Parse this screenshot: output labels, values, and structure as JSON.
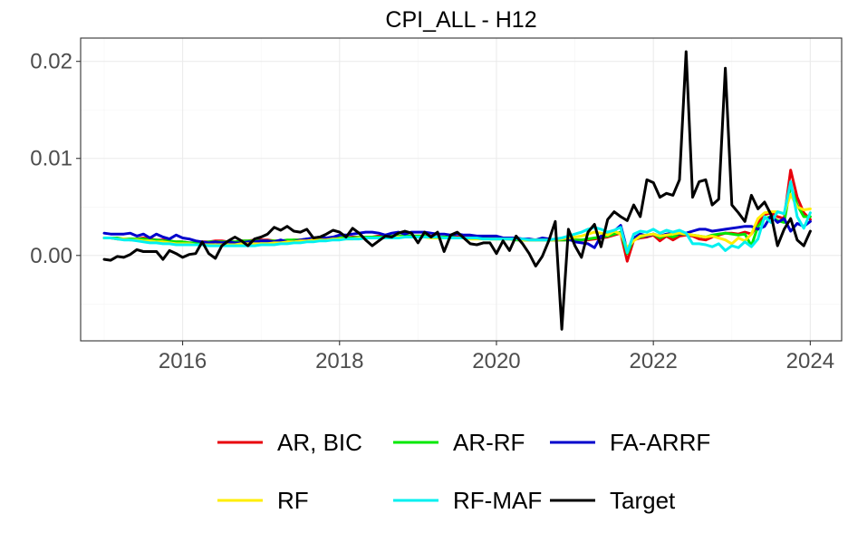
{
  "chart_data": {
    "type": "line",
    "title": "CPI_ALL - H12",
    "xlabel": "",
    "ylabel": "",
    "xlim": [
      2014.7,
      2024.4
    ],
    "ylim": [
      -0.0088,
      0.0224
    ],
    "x_ticks": [
      2016,
      2018,
      2020,
      2022,
      2024
    ],
    "x_tick_labels": [
      "2016",
      "2018",
      "2020",
      "2022",
      "2024"
    ],
    "y_ticks": [
      0.0,
      0.01,
      0.02
    ],
    "y_tick_labels": [
      "0.00",
      "0.01",
      "0.02"
    ],
    "grid": true,
    "legend_position": "bottom",
    "x": [
      2015.0,
      2015.083,
      2015.167,
      2015.25,
      2015.333,
      2015.417,
      2015.5,
      2015.583,
      2015.667,
      2015.75,
      2015.833,
      2015.917,
      2016.0,
      2016.083,
      2016.167,
      2016.25,
      2016.333,
      2016.417,
      2016.5,
      2016.583,
      2016.667,
      2016.75,
      2016.833,
      2016.917,
      2017.0,
      2017.083,
      2017.167,
      2017.25,
      2017.333,
      2017.417,
      2017.5,
      2017.583,
      2017.667,
      2017.75,
      2017.833,
      2017.917,
      2018.0,
      2018.083,
      2018.167,
      2018.25,
      2018.333,
      2018.417,
      2018.5,
      2018.583,
      2018.667,
      2018.75,
      2018.833,
      2018.917,
      2019.0,
      2019.083,
      2019.167,
      2019.25,
      2019.333,
      2019.417,
      2019.5,
      2019.583,
      2019.667,
      2019.75,
      2019.833,
      2019.917,
      2020.0,
      2020.083,
      2020.167,
      2020.25,
      2020.333,
      2020.417,
      2020.5,
      2020.583,
      2020.667,
      2020.75,
      2020.833,
      2020.917,
      2021.0,
      2021.083,
      2021.167,
      2021.25,
      2021.333,
      2021.417,
      2021.5,
      2021.583,
      2021.667,
      2021.75,
      2021.833,
      2021.917,
      2022.0,
      2022.083,
      2022.167,
      2022.25,
      2022.333,
      2022.417,
      2022.5,
      2022.583,
      2022.667,
      2022.75,
      2022.833,
      2022.917,
      2023.0,
      2023.083,
      2023.167,
      2023.25,
      2023.333,
      2023.417,
      2023.5,
      2023.583,
      2023.667,
      2023.75,
      2023.833,
      2023.917,
      2024.0
    ],
    "series": [
      {
        "name": "AR, BIC",
        "color": "#e8000b",
        "values": [
          0.0018,
          0.0018,
          0.0017,
          0.0017,
          0.0016,
          0.0017,
          0.0018,
          0.0017,
          0.0016,
          0.0016,
          0.0015,
          0.0014,
          0.0014,
          0.0013,
          0.0013,
          0.0014,
          0.0014,
          0.0015,
          0.0015,
          0.0014,
          0.0014,
          0.0015,
          0.0015,
          0.0016,
          0.0016,
          0.0016,
          0.0015,
          0.0015,
          0.0015,
          0.0016,
          0.0016,
          0.0016,
          0.0017,
          0.0017,
          0.0017,
          0.0018,
          0.0018,
          0.0018,
          0.0019,
          0.0019,
          0.0019,
          0.0019,
          0.002,
          0.002,
          0.002,
          0.002,
          0.002,
          0.002,
          0.002,
          0.002,
          0.002,
          0.0019,
          0.0019,
          0.0019,
          0.0019,
          0.0019,
          0.0019,
          0.0018,
          0.0018,
          0.0018,
          0.0018,
          0.0017,
          0.0017,
          0.0017,
          0.0016,
          0.0016,
          0.0016,
          0.0016,
          0.0016,
          0.0016,
          0.0016,
          0.0016,
          0.0016,
          0.0016,
          0.0016,
          0.0017,
          0.0018,
          0.0019,
          0.0021,
          0.0023,
          -0.0006,
          0.0016,
          0.0018,
          0.0019,
          0.0021,
          0.0015,
          0.002,
          0.0016,
          0.002,
          0.0021,
          0.002,
          0.0017,
          0.0016,
          0.0019,
          0.0021,
          0.0023,
          0.0023,
          0.0022,
          0.0024,
          0.0022,
          0.0033,
          0.0042,
          0.0044,
          0.004,
          0.0038,
          0.0088,
          0.006,
          0.0044,
          0.0037
        ]
      },
      {
        "name": "AR-RF",
        "color": "#00e800",
        "values": [
          0.0018,
          0.0018,
          0.0018,
          0.0017,
          0.0017,
          0.0017,
          0.0017,
          0.0016,
          0.0016,
          0.0015,
          0.0015,
          0.0014,
          0.0014,
          0.0013,
          0.0013,
          0.0013,
          0.0014,
          0.0014,
          0.0014,
          0.0014,
          0.0014,
          0.0015,
          0.0015,
          0.0015,
          0.0015,
          0.0015,
          0.0015,
          0.0015,
          0.0016,
          0.0016,
          0.0016,
          0.0017,
          0.0017,
          0.0017,
          0.0017,
          0.0018,
          0.0018,
          0.0018,
          0.0018,
          0.0019,
          0.0019,
          0.0019,
          0.0019,
          0.0019,
          0.002,
          0.002,
          0.002,
          0.002,
          0.002,
          0.002,
          0.0019,
          0.0019,
          0.0019,
          0.0019,
          0.0018,
          0.0018,
          0.0018,
          0.0018,
          0.0018,
          0.0017,
          0.0017,
          0.0017,
          0.0017,
          0.0016,
          0.0016,
          0.0016,
          0.0016,
          0.0016,
          0.0016,
          0.0016,
          0.0016,
          0.0016,
          0.0016,
          0.0016,
          0.0017,
          0.0018,
          0.0019,
          0.002,
          0.0022,
          0.0024,
          0.0002,
          0.0017,
          0.0019,
          0.0021,
          0.0022,
          0.0018,
          0.0021,
          0.0019,
          0.0022,
          0.0022,
          0.0021,
          0.002,
          0.0019,
          0.0021,
          0.0022,
          0.0023,
          0.0022,
          0.0021,
          0.0022,
          0.001,
          0.003,
          0.0038,
          0.004,
          0.0036,
          0.0034,
          0.0072,
          0.0052,
          0.004,
          0.004
        ]
      },
      {
        "name": "FA-ARRF",
        "color": "#0000cc",
        "values": [
          0.0023,
          0.0022,
          0.0022,
          0.0022,
          0.0023,
          0.002,
          0.0022,
          0.0018,
          0.0022,
          0.0019,
          0.0017,
          0.0021,
          0.0018,
          0.0017,
          0.0015,
          0.0014,
          0.0013,
          0.0014,
          0.0013,
          0.0014,
          0.0013,
          0.0013,
          0.0014,
          0.0014,
          0.0015,
          0.0015,
          0.0014,
          0.0016,
          0.0014,
          0.0014,
          0.0016,
          0.0017,
          0.0018,
          0.0019,
          0.0018,
          0.0019,
          0.0021,
          0.0021,
          0.0022,
          0.0023,
          0.0024,
          0.0024,
          0.0023,
          0.0021,
          0.0023,
          0.0024,
          0.0022,
          0.0024,
          0.0024,
          0.0024,
          0.0023,
          0.0022,
          0.0022,
          0.0021,
          0.0022,
          0.0021,
          0.0021,
          0.002,
          0.002,
          0.002,
          0.002,
          0.0018,
          0.0018,
          0.0018,
          0.0017,
          0.0017,
          0.0016,
          0.0018,
          0.0017,
          0.0016,
          0.0017,
          0.0017,
          0.0014,
          0.0013,
          0.0012,
          0.0008,
          0.002,
          0.0024,
          0.0025,
          0.0031,
          0.0005,
          0.0018,
          0.0022,
          0.002,
          0.0022,
          0.002,
          0.0022,
          0.0023,
          0.0022,
          0.0023,
          0.0025,
          0.0027,
          0.0027,
          0.0025,
          0.0026,
          0.0027,
          0.0028,
          0.0029,
          0.003,
          0.003,
          0.0027,
          0.003,
          0.0041,
          0.0034,
          0.0038,
          0.0025,
          0.0033,
          0.003,
          0.0035
        ]
      },
      {
        "name": "RF",
        "color": "#ffee00",
        "values": [
          0.0018,
          0.0018,
          0.0017,
          0.0017,
          0.0016,
          0.0016,
          0.0015,
          0.0015,
          0.0014,
          0.0014,
          0.0013,
          0.0012,
          0.0012,
          0.0012,
          0.0011,
          0.0011,
          0.0011,
          0.0011,
          0.0011,
          0.0011,
          0.0011,
          0.0012,
          0.0012,
          0.0012,
          0.0012,
          0.0012,
          0.0013,
          0.0013,
          0.0014,
          0.0014,
          0.0015,
          0.0015,
          0.0016,
          0.0016,
          0.0016,
          0.0017,
          0.0017,
          0.0017,
          0.0017,
          0.0018,
          0.0018,
          0.0018,
          0.0018,
          0.0018,
          0.0019,
          0.0019,
          0.0019,
          0.0019,
          0.0019,
          0.0019,
          0.0018,
          0.0018,
          0.0018,
          0.0018,
          0.0018,
          0.0018,
          0.0017,
          0.0017,
          0.0017,
          0.0017,
          0.0017,
          0.0017,
          0.0017,
          0.0017,
          0.0016,
          0.0016,
          0.0016,
          0.0016,
          0.0016,
          0.0016,
          0.0017,
          0.0018,
          0.0019,
          0.002,
          0.0022,
          0.0024,
          0.0023,
          0.0021,
          0.0025,
          0.0022,
          0.0008,
          0.0015,
          0.002,
          0.0021,
          0.0022,
          0.002,
          0.0021,
          0.0022,
          0.0023,
          0.0022,
          0.0021,
          0.002,
          0.0019,
          0.002,
          0.0018,
          0.0016,
          0.0012,
          0.0018,
          0.0015,
          0.0022,
          0.0038,
          0.0044,
          0.0045,
          0.0045,
          0.0043,
          0.0063,
          0.005,
          0.0047,
          0.0048
        ]
      },
      {
        "name": "RF-MAF",
        "color": "#00f0f0",
        "values": [
          0.0018,
          0.0018,
          0.0017,
          0.0016,
          0.0016,
          0.0015,
          0.0014,
          0.0013,
          0.0013,
          0.0012,
          0.0012,
          0.0011,
          0.0011,
          0.0011,
          0.0011,
          0.0011,
          0.001,
          0.001,
          0.001,
          0.001,
          0.001,
          0.001,
          0.001,
          0.001,
          0.0011,
          0.0011,
          0.0011,
          0.0012,
          0.0012,
          0.0013,
          0.0013,
          0.0014,
          0.0014,
          0.0015,
          0.0015,
          0.0016,
          0.0016,
          0.0017,
          0.0017,
          0.0017,
          0.0018,
          0.0018,
          0.0018,
          0.0018,
          0.0018,
          0.0018,
          0.0019,
          0.0019,
          0.0019,
          0.0019,
          0.0019,
          0.0019,
          0.0018,
          0.0018,
          0.0018,
          0.0018,
          0.0018,
          0.0018,
          0.0017,
          0.0017,
          0.0017,
          0.0017,
          0.0017,
          0.0017,
          0.0017,
          0.0016,
          0.0016,
          0.0016,
          0.0016,
          0.0017,
          0.0018,
          0.002,
          0.0022,
          0.0024,
          0.0027,
          0.0029,
          0.0027,
          0.0024,
          0.0026,
          0.0029,
          0.0003,
          0.0022,
          0.0025,
          0.0024,
          0.0027,
          0.0023,
          0.0026,
          0.0024,
          0.0026,
          0.0023,
          0.0012,
          0.0012,
          0.0011,
          0.0009,
          0.0012,
          0.0005,
          0.001,
          0.0008,
          0.0014,
          0.0009,
          0.0017,
          0.004,
          0.0034,
          0.0045,
          0.0043,
          0.0076,
          0.004,
          0.0028,
          0.0044
        ]
      },
      {
        "name": "Target",
        "color": "#000000",
        "values": [
          -0.0004,
          -0.0005,
          -0.0001,
          -0.0002,
          0.0001,
          0.0006,
          0.0004,
          0.0004,
          0.0004,
          -0.0004,
          0.0005,
          0.0002,
          -0.0002,
          0.0001,
          0.0002,
          0.0014,
          0.0002,
          -0.0003,
          0.001,
          0.0015,
          0.0019,
          0.0015,
          0.001,
          0.0017,
          0.0019,
          0.0022,
          0.0029,
          0.0026,
          0.003,
          0.0025,
          0.0024,
          0.0027,
          0.0018,
          0.0019,
          0.0022,
          0.0026,
          0.0024,
          0.0019,
          0.0028,
          0.0023,
          0.0016,
          0.001,
          0.0015,
          0.002,
          0.0019,
          0.0023,
          0.0025,
          0.0023,
          0.0013,
          0.0024,
          0.0019,
          0.0024,
          0.0004,
          0.0021,
          0.0024,
          0.0018,
          0.0012,
          0.0011,
          0.0013,
          0.0013,
          0.0002,
          0.0015,
          0.0005,
          0.002,
          0.0012,
          0.0002,
          -0.0011,
          -0.0001,
          0.0015,
          0.0035,
          -0.0076,
          0.0027,
          0.001,
          -0.0002,
          0.0024,
          0.0032,
          0.0009,
          0.0037,
          0.0045,
          0.004,
          0.0036,
          0.0052,
          0.004,
          0.0078,
          0.0075,
          0.006,
          0.0064,
          0.0062,
          0.0078,
          0.021,
          0.006,
          0.0076,
          0.0078,
          0.0052,
          0.0058,
          0.0193,
          0.0052,
          0.0044,
          0.0035,
          0.0062,
          0.0048,
          0.0055,
          0.0042,
          0.001,
          0.0027,
          0.0038,
          0.0016,
          0.001,
          0.0025
        ]
      }
    ]
  }
}
